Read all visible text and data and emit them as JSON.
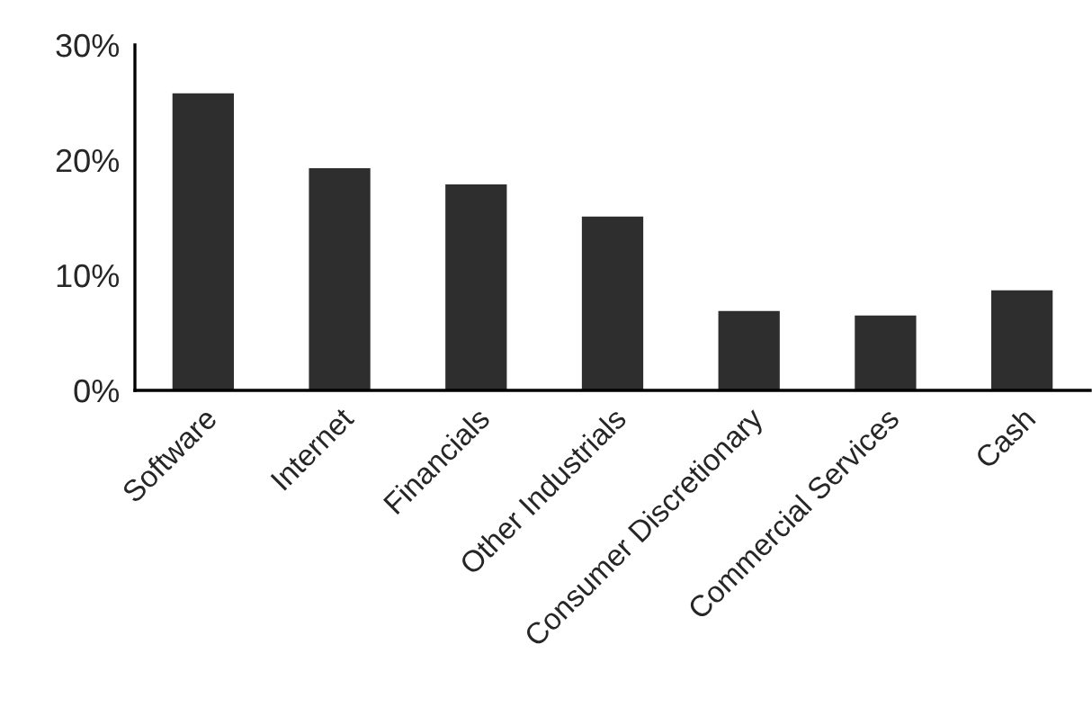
{
  "chart_data": {
    "type": "bar",
    "categories": [
      "Software",
      "Internet",
      "Financials",
      "Other Industrials",
      "Consumer Discretionary",
      "Commercial Services",
      "Cash"
    ],
    "values": [
      25.8,
      19.3,
      17.9,
      15.1,
      6.9,
      6.5,
      8.7
    ],
    "color": "#2e2e2e",
    "ylim": [
      0,
      30
    ],
    "yticks": [
      {
        "value": 0,
        "label": "0%"
      },
      {
        "value": 10,
        "label": "10%"
      },
      {
        "value": 20,
        "label": "20%"
      },
      {
        "value": 30,
        "label": "30%"
      }
    ],
    "grid": false
  }
}
